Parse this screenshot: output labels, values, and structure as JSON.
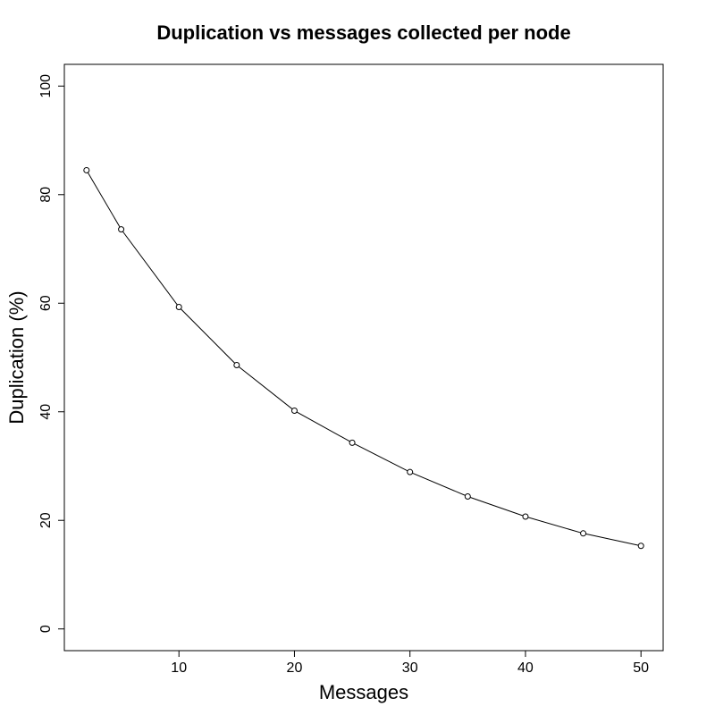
{
  "chart_data": {
    "type": "line",
    "title": "Duplication vs messages collected per node",
    "x_label": "Messages",
    "y_label": "Duplication (%)",
    "x": [
      2,
      5,
      10,
      15,
      20,
      25,
      30,
      35,
      40,
      45,
      50
    ],
    "series": [
      {
        "color": "#000000",
        "values": [
          84.5,
          73.6,
          59.3,
          48.6,
          40.2,
          34.3,
          28.9,
          24.4,
          20.7,
          17.6,
          15.3
        ]
      }
    ],
    "markers": true,
    "xlim": [
      0.08,
      51.92
    ],
    "xticks": [
      10,
      20,
      30,
      40,
      50
    ],
    "ylim": [
      -4,
      104
    ],
    "yticks": [
      0,
      20,
      40,
      60,
      80,
      100
    ],
    "grid": false
  }
}
